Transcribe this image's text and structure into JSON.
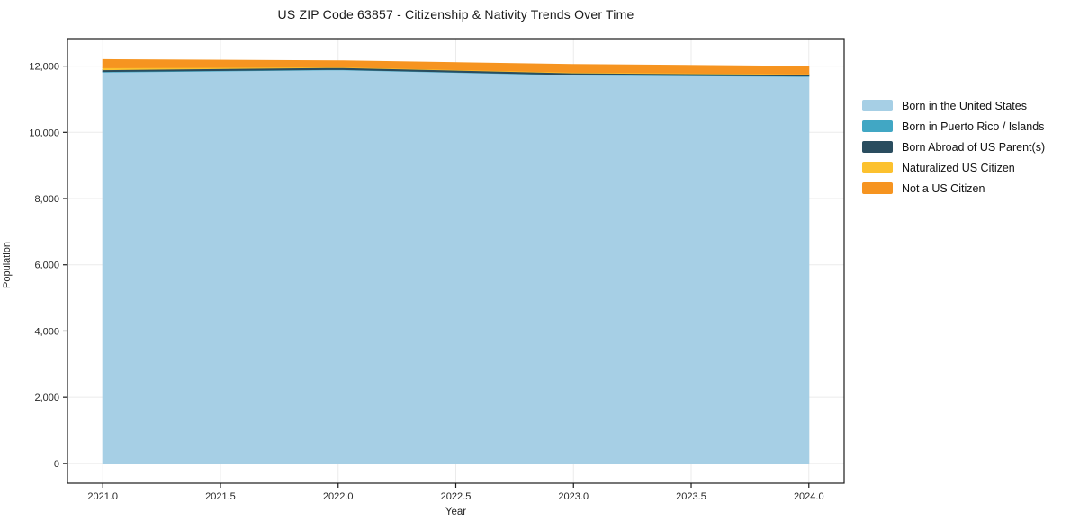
{
  "title": "US ZIP Code 63857 - Citizenship & Nativity Trends Over Time",
  "chart_data": {
    "type": "area",
    "stacked": true,
    "title": "US ZIP Code 63857 - Citizenship & Nativity Trends Over Time",
    "xlabel": "Year",
    "ylabel": "Population",
    "x": [
      2021,
      2022,
      2023,
      2024
    ],
    "series": [
      {
        "name": "Born in the United States",
        "color": "#a6cfe5",
        "values": [
          11820,
          11890,
          11730,
          11690
        ]
      },
      {
        "name": "Born in Puerto Rico / Islands",
        "color": "#41a7c4",
        "values": [
          15,
          10,
          10,
          10
        ]
      },
      {
        "name": "Born Abroad of US Parent(s)",
        "color": "#2a4d5f",
        "values": [
          55,
          60,
          55,
          50
        ]
      },
      {
        "name": "Naturalized US Citizen",
        "color": "#fcc12e",
        "values": [
          60,
          15,
          20,
          15
        ]
      },
      {
        "name": "Not a US Citizen",
        "color": "#f69420",
        "values": [
          245,
          185,
          235,
          225
        ]
      }
    ],
    "xticks": [
      2021.0,
      2021.5,
      2022.0,
      2022.5,
      2023.0,
      2023.5,
      2024.0
    ],
    "xtick_labels": [
      "2021.0",
      "2021.5",
      "2022.0",
      "2022.5",
      "2023.0",
      "2023.5",
      "2024.0"
    ],
    "yticks": [
      0,
      2000,
      4000,
      6000,
      8000,
      10000,
      12000
    ],
    "ytick_labels": [
      "0",
      "2,000",
      "4,000",
      "6,000",
      "8,000",
      "10,000",
      "12,000"
    ],
    "xlim": [
      2020.85,
      2024.15
    ],
    "ylim": [
      -600,
      12830
    ],
    "grid": true,
    "grid_color": "#ebebeb",
    "spine_color": "#1a1a1a",
    "legend_position": "right"
  }
}
